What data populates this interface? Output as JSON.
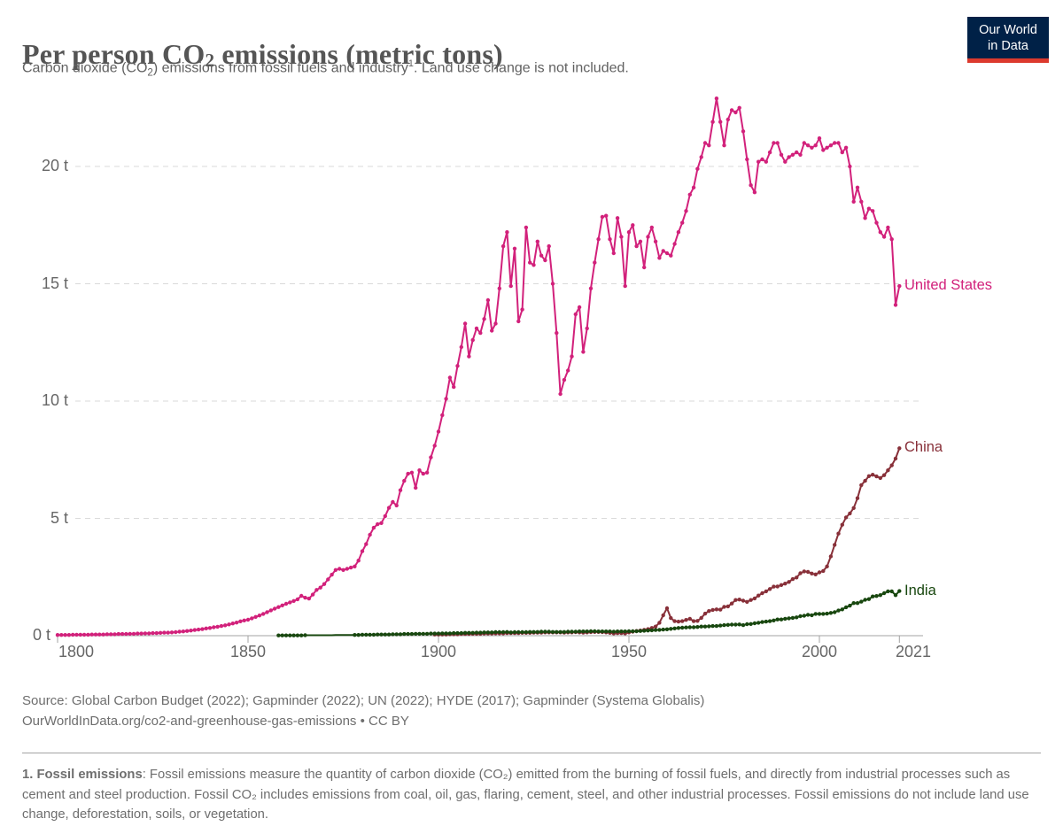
{
  "header": {
    "title_pre": "Per person CO",
    "title_sub": "2",
    "title_post": " emissions (metric tons)",
    "subtitle_pre": "Carbon dioxide (CO",
    "subtitle_sub": "2",
    "subtitle_mid": ") emissions from fossil fuels and industry",
    "subtitle_sup": "1",
    "subtitle_post": ". Land use change is not included."
  },
  "logo": {
    "line1": "Our World",
    "line2": "in Data",
    "bg_color": "#002147",
    "accent_color": "#dc3a2e"
  },
  "footer": {
    "source_line1": "Source: Global Carbon Budget (2022); Gapminder (2022); UN (2022); HYDE (2017); Gapminder (Systema Globalis)",
    "source_line2": "OurWorldInData.org/co2-and-greenhouse-gas-emissions • CC BY",
    "note_bold": "1. Fossil emissions",
    "note_rest": ": Fossil emissions measure the quantity of carbon dioxide (CO₂) emitted from the burning of fossil fuels, and directly from industrial processes such as cement and steel production. Fossil CO₂ includes emissions from coal, oil, gas, flaring, cement, steel, and other industrial processes. Fossil emissions do not include land use change, deforestation, soils, or vegetation."
  },
  "chart_data": {
    "type": "line",
    "title": "Per person CO₂ emissions (metric tons)",
    "xlabel": "",
    "ylabel": "",
    "xlim": [
      1800,
      2021
    ],
    "ylim": [
      0,
      23.3
    ],
    "grid": "horizontal-dashed",
    "legend_position": "end-of-line",
    "markers": true,
    "yticks": [
      {
        "v": 0,
        "label": "0 t"
      },
      {
        "v": 5,
        "label": "5 t"
      },
      {
        "v": 10,
        "label": "10 t"
      },
      {
        "v": 15,
        "label": "15 t"
      },
      {
        "v": 20,
        "label": "20 t"
      }
    ],
    "xticks": [
      {
        "v": 1800,
        "label": "1800"
      },
      {
        "v": 1850,
        "label": "1850"
      },
      {
        "v": 1900,
        "label": "1900"
      },
      {
        "v": 1950,
        "label": "1950"
      },
      {
        "v": 2000,
        "label": "2000"
      },
      {
        "v": 2021,
        "label": "2021"
      }
    ],
    "series": [
      {
        "name": "United States",
        "color": "#d2217b",
        "start_year": 1800,
        "values": [
          0.03,
          0.03,
          0.03,
          0.03,
          0.04,
          0.04,
          0.04,
          0.04,
          0.04,
          0.05,
          0.05,
          0.05,
          0.05,
          0.06,
          0.06,
          0.06,
          0.07,
          0.07,
          0.07,
          0.08,
          0.08,
          0.09,
          0.09,
          0.1,
          0.1,
          0.11,
          0.11,
          0.12,
          0.13,
          0.13,
          0.14,
          0.15,
          0.17,
          0.18,
          0.2,
          0.22,
          0.24,
          0.26,
          0.28,
          0.31,
          0.33,
          0.36,
          0.38,
          0.41,
          0.44,
          0.48,
          0.52,
          0.56,
          0.61,
          0.65,
          0.68,
          0.74,
          0.8,
          0.86,
          0.93,
          1.0,
          1.08,
          1.15,
          1.22,
          1.29,
          1.36,
          1.42,
          1.48,
          1.55,
          1.7,
          1.62,
          1.58,
          1.75,
          1.95,
          2.05,
          2.2,
          2.4,
          2.6,
          2.8,
          2.85,
          2.8,
          2.85,
          2.9,
          2.95,
          3.2,
          3.6,
          3.9,
          4.3,
          4.6,
          4.75,
          4.8,
          5.1,
          5.45,
          5.7,
          5.55,
          6.2,
          6.6,
          6.9,
          6.95,
          6.3,
          7.05,
          6.9,
          6.95,
          7.6,
          8.1,
          8.7,
          9.4,
          10.1,
          11.0,
          10.6,
          11.5,
          12.3,
          13.3,
          11.9,
          12.6,
          13.1,
          12.9,
          13.5,
          14.3,
          13.0,
          13.3,
          14.8,
          16.6,
          17.2,
          14.9,
          16.5,
          13.4,
          13.9,
          17.4,
          15.9,
          15.8,
          16.8,
          16.2,
          16.0,
          16.6,
          15.0,
          12.9,
          10.3,
          10.9,
          11.3,
          11.9,
          13.7,
          14.0,
          12.1,
          13.1,
          14.8,
          15.9,
          16.9,
          17.85,
          17.9,
          16.9,
          16.3,
          17.8,
          17.0,
          14.9,
          17.2,
          17.5,
          16.6,
          16.8,
          15.7,
          17.0,
          17.4,
          16.8,
          16.1,
          16.4,
          16.3,
          16.2,
          16.7,
          17.2,
          17.6,
          18.1,
          18.8,
          19.1,
          19.9,
          20.4,
          21.0,
          20.9,
          21.9,
          22.9,
          21.9,
          20.9,
          22.0,
          22.4,
          22.3,
          22.5,
          21.5,
          20.3,
          19.2,
          18.9,
          20.2,
          20.3,
          20.2,
          20.6,
          21.0,
          21.0,
          20.5,
          20.2,
          20.4,
          20.5,
          20.6,
          20.5,
          21.0,
          20.9,
          20.8,
          20.9,
          21.2,
          20.7,
          20.8,
          20.9,
          21.0,
          21.0,
          20.6,
          20.8,
          20.0,
          18.5,
          19.1,
          18.5,
          17.8,
          18.2,
          18.1,
          17.6,
          17.2,
          17.0,
          17.4,
          16.9,
          14.1,
          14.9
        ]
      },
      {
        "name": "China",
        "color": "#883039",
        "start_year": 1899,
        "values": [
          0.05,
          0.05,
          0.05,
          0.05,
          0.06,
          0.06,
          0.06,
          0.07,
          0.07,
          0.07,
          0.08,
          0.08,
          0.08,
          0.09,
          0.09,
          0.09,
          0.1,
          0.1,
          0.1,
          0.11,
          0.11,
          0.11,
          0.11,
          0.12,
          0.12,
          0.12,
          0.13,
          0.13,
          0.13,
          0.14,
          0.14,
          0.14,
          0.14,
          0.14,
          0.13,
          0.14,
          0.14,
          0.15,
          0.14,
          0.13,
          0.14,
          0.15,
          0.16,
          0.16,
          0.15,
          0.14,
          0.12,
          0.1,
          0.11,
          0.11,
          0.1,
          0.14,
          0.17,
          0.2,
          0.22,
          0.25,
          0.28,
          0.33,
          0.39,
          0.55,
          0.87,
          1.17,
          0.75,
          0.62,
          0.6,
          0.62,
          0.67,
          0.72,
          0.62,
          0.63,
          0.76,
          0.94,
          1.05,
          1.1,
          1.12,
          1.11,
          1.23,
          1.25,
          1.37,
          1.52,
          1.54,
          1.49,
          1.44,
          1.52,
          1.59,
          1.71,
          1.81,
          1.89,
          1.99,
          2.09,
          2.1,
          2.16,
          2.22,
          2.29,
          2.41,
          2.48,
          2.66,
          2.74,
          2.72,
          2.65,
          2.61,
          2.7,
          2.76,
          2.95,
          3.38,
          3.87,
          4.35,
          4.73,
          5.04,
          5.21,
          5.44,
          5.86,
          6.42,
          6.6,
          6.8,
          6.86,
          6.79,
          6.72,
          6.84,
          7.05,
          7.26,
          7.55,
          7.99
        ]
      },
      {
        "name": "India",
        "color": "#18470f",
        "start_year": 1858,
        "marker_gap": [
          1866,
          1877
        ],
        "values": [
          0.01,
          0.01,
          0.01,
          0.01,
          0.01,
          0.01,
          0.01,
          0.02,
          0.02,
          0.02,
          0.02,
          0.02,
          0.02,
          0.02,
          0.02,
          0.03,
          0.03,
          0.03,
          0.03,
          0.03,
          0.03,
          0.03,
          0.04,
          0.04,
          0.04,
          0.04,
          0.05,
          0.05,
          0.05,
          0.05,
          0.06,
          0.06,
          0.06,
          0.07,
          0.07,
          0.07,
          0.08,
          0.08,
          0.08,
          0.08,
          0.09,
          0.09,
          0.09,
          0.1,
          0.1,
          0.1,
          0.11,
          0.11,
          0.11,
          0.12,
          0.12,
          0.12,
          0.13,
          0.13,
          0.14,
          0.14,
          0.14,
          0.15,
          0.15,
          0.15,
          0.16,
          0.14,
          0.15,
          0.15,
          0.15,
          0.15,
          0.16,
          0.16,
          0.16,
          0.17,
          0.17,
          0.17,
          0.16,
          0.16,
          0.16,
          0.16,
          0.17,
          0.17,
          0.17,
          0.18,
          0.18,
          0.18,
          0.19,
          0.19,
          0.18,
          0.18,
          0.18,
          0.18,
          0.17,
          0.18,
          0.18,
          0.18,
          0.19,
          0.19,
          0.19,
          0.2,
          0.21,
          0.22,
          0.23,
          0.24,
          0.25,
          0.26,
          0.27,
          0.29,
          0.31,
          0.33,
          0.34,
          0.35,
          0.36,
          0.36,
          0.37,
          0.39,
          0.39,
          0.4,
          0.41,
          0.41,
          0.43,
          0.45,
          0.46,
          0.47,
          0.47,
          0.48,
          0.45,
          0.49,
          0.5,
          0.53,
          0.55,
          0.58,
          0.6,
          0.62,
          0.65,
          0.69,
          0.69,
          0.72,
          0.74,
          0.76,
          0.78,
          0.83,
          0.85,
          0.89,
          0.87,
          0.93,
          0.93,
          0.93,
          0.94,
          0.97,
          1.0,
          1.07,
          1.12,
          1.21,
          1.28,
          1.39,
          1.39,
          1.45,
          1.53,
          1.56,
          1.67,
          1.69,
          1.73,
          1.81,
          1.89,
          1.89,
          1.73,
          1.9
        ]
      }
    ]
  }
}
